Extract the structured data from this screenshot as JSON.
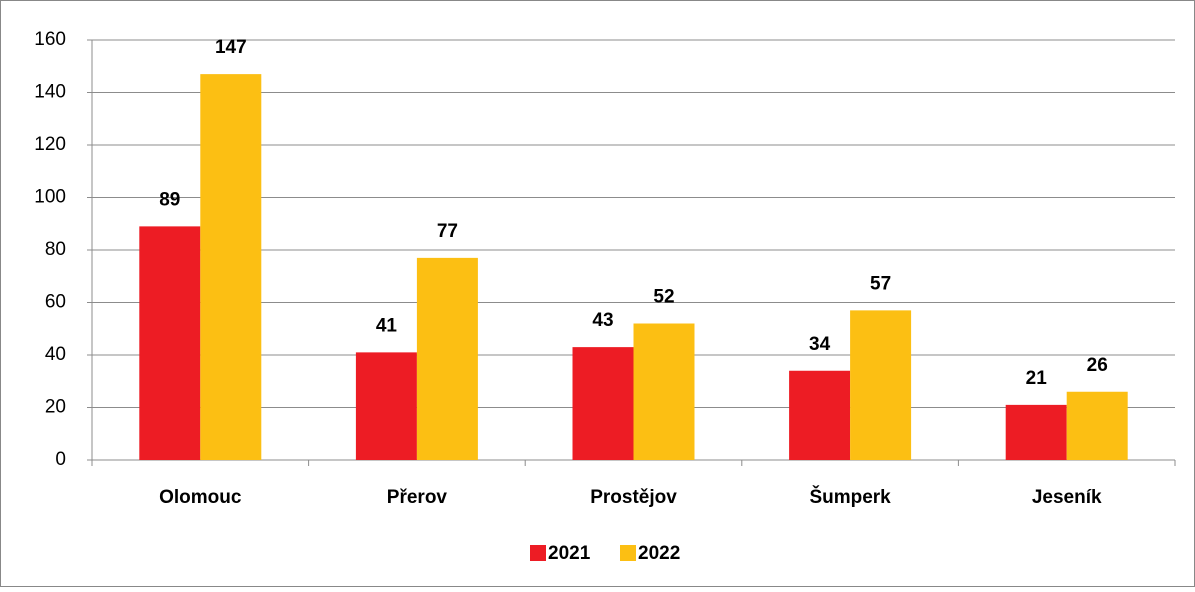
{
  "chart_data": {
    "type": "bar",
    "categories": [
      "Olomouc",
      "Přerov",
      "Prostějov",
      "Šumperk",
      "Jeseník"
    ],
    "series": [
      {
        "name": "2021",
        "color": "#ed1c24",
        "values": [
          89,
          41,
          43,
          34,
          21
        ]
      },
      {
        "name": "2022",
        "color": "#fcbf13",
        "values": [
          147,
          77,
          52,
          57,
          26
        ]
      }
    ],
    "ylim": [
      0,
      160
    ],
    "yticks": [
      0,
      20,
      40,
      60,
      80,
      100,
      120,
      140,
      160
    ],
    "grid": true,
    "legend": "bottom"
  }
}
